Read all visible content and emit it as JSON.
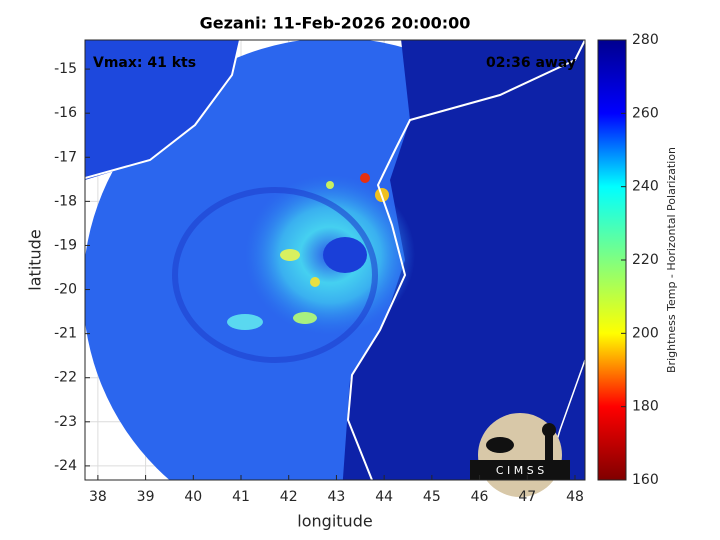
{
  "chart_data": {
    "type": "map",
    "title": "Gezani: 11-Feb-2026 20:00:00",
    "annotations": [
      "Vmax: 41 kts",
      "02:36 away"
    ],
    "x_label": "longitude",
    "y_label": "latitude",
    "xlim": [
      37.73,
      48.21
    ],
    "ylim": [
      -24.32,
      -14.34
    ],
    "xticks": [
      38,
      39,
      40,
      41,
      42,
      43,
      44,
      45,
      46,
      47,
      48
    ],
    "yticks": [
      -24,
      -23,
      -22,
      -21,
      -20,
      -19,
      -18,
      -17,
      -16,
      -15
    ],
    "grid": true,
    "colorbar": {
      "label": "Brightness Temp - Horizontal Polarization",
      "colormap": "jet",
      "clim": [
        160,
        280
      ],
      "ticks": [
        160,
        180,
        200,
        220,
        240,
        260,
        280
      ]
    },
    "logo": "C I M S S"
  }
}
